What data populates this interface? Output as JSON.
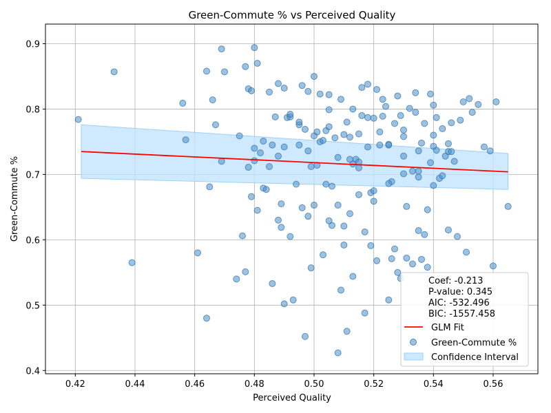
{
  "chart_data": {
    "type": "scatter",
    "title": "Green-Commute % vs Perceived Quality",
    "xlabel": "Perceived Quality",
    "ylabel": "Green-Commute %",
    "xlim": [
      0.41,
      0.575
    ],
    "ylim": [
      0.395,
      0.93
    ],
    "xticks": [
      "0.42",
      "0.44",
      "0.46",
      "0.48",
      "0.50",
      "0.52",
      "0.54",
      "0.56"
    ],
    "yticks": [
      "0.4",
      "0.5",
      "0.6",
      "0.7",
      "0.8",
      "0.9"
    ],
    "grid": true,
    "legend_position": "lower-right",
    "stats": [
      "Coef: -0.213",
      "P-value: 0.345",
      "AIC: -532.496",
      "BIC: -1557.458"
    ],
    "legend": [
      "GLM Fit",
      "Green-Commute %",
      "Confidence Interval"
    ],
    "colors": {
      "points": "#4a90c8",
      "fit": "#ff0000",
      "ci": "#bfe3ff"
    },
    "fit": {
      "x": [
        0.422,
        0.565
      ],
      "y": [
        0.735,
        0.704
      ]
    },
    "ci": {
      "x": [
        0.422,
        0.565
      ],
      "upper": [
        0.776,
        0.732
      ],
      "lower": [
        0.694,
        0.677
      ]
    },
    "series": [
      {
        "x": [
          0.421,
          0.433,
          0.439,
          0.456,
          0.457,
          0.461,
          0.464,
          0.464,
          0.465,
          0.466,
          0.467,
          0.469,
          0.469,
          0.47,
          0.474,
          0.475,
          0.476,
          0.477,
          0.477,
          0.478,
          0.478,
          0.479,
          0.479,
          0.48,
          0.48,
          0.481,
          0.481,
          0.482,
          0.483,
          0.483,
          0.484,
          0.485,
          0.486,
          0.486,
          0.487,
          0.488,
          0.488,
          0.489,
          0.489,
          0.49,
          0.49,
          0.491,
          0.492,
          0.492,
          0.493,
          0.494,
          0.495,
          0.495,
          0.496,
          0.496,
          0.497,
          0.497,
          0.498,
          0.498,
          0.499,
          0.499,
          0.5,
          0.5,
          0.501,
          0.501,
          0.502,
          0.502,
          0.503,
          0.504,
          0.504,
          0.505,
          0.505,
          0.506,
          0.506,
          0.507,
          0.508,
          0.508,
          0.509,
          0.509,
          0.51,
          0.51,
          0.511,
          0.511,
          0.512,
          0.512,
          0.513,
          0.513,
          0.514,
          0.515,
          0.515,
          0.516,
          0.516,
          0.517,
          0.517,
          0.518,
          0.518,
          0.519,
          0.519,
          0.52,
          0.52,
          0.521,
          0.521,
          0.522,
          0.523,
          0.523,
          0.524,
          0.525,
          0.525,
          0.526,
          0.526,
          0.527,
          0.527,
          0.528,
          0.528,
          0.529,
          0.529,
          0.53,
          0.53,
          0.531,
          0.531,
          0.532,
          0.533,
          0.533,
          0.534,
          0.534,
          0.535,
          0.535,
          0.536,
          0.536,
          0.537,
          0.537,
          0.538,
          0.538,
          0.539,
          0.539,
          0.54,
          0.54,
          0.541,
          0.541,
          0.542,
          0.543,
          0.543,
          0.544,
          0.545,
          0.545,
          0.546,
          0.546,
          0.547,
          0.548,
          0.549,
          0.55,
          0.551,
          0.552,
          0.553,
          0.555,
          0.557,
          0.559,
          0.56,
          0.561,
          0.565,
          0.5,
          0.505,
          0.51,
          0.515,
          0.52,
          0.525,
          0.53,
          0.535,
          0.54,
          0.495,
          0.49,
          0.485,
          0.48,
          0.505,
          0.515,
          0.525,
          0.535,
          0.512,
          0.518,
          0.522,
          0.508,
          0.498,
          0.492,
          0.488,
          0.53,
          0.54,
          0.545,
          0.503,
          0.513
        ],
        "y": [
          0.784,
          0.857,
          0.565,
          0.809,
          0.753,
          0.58,
          0.858,
          0.48,
          0.681,
          0.814,
          0.776,
          0.892,
          0.72,
          0.857,
          0.54,
          0.759,
          0.606,
          0.865,
          0.551,
          0.831,
          0.711,
          0.666,
          0.828,
          0.894,
          0.74,
          0.645,
          0.87,
          0.733,
          0.751,
          0.679,
          0.677,
          0.826,
          0.745,
          0.533,
          0.788,
          0.839,
          0.63,
          0.655,
          0.619,
          0.832,
          0.502,
          0.787,
          0.605,
          0.788,
          0.508,
          0.685,
          0.745,
          0.776,
          0.836,
          0.649,
          0.769,
          0.452,
          0.827,
          0.636,
          0.712,
          0.557,
          0.653,
          0.85,
          0.765,
          0.714,
          0.823,
          0.75,
          0.577,
          0.685,
          0.767,
          0.799,
          0.822,
          0.682,
          0.622,
          0.756,
          0.653,
          0.427,
          0.523,
          0.815,
          0.621,
          0.592,
          0.46,
          0.78,
          0.757,
          0.64,
          0.716,
          0.544,
          0.723,
          0.719,
          0.669,
          0.833,
          0.79,
          0.488,
          0.612,
          0.838,
          0.787,
          0.672,
          0.591,
          0.675,
          0.659,
          0.83,
          0.568,
          0.745,
          0.815,
          0.789,
          0.804,
          0.746,
          0.508,
          0.571,
          0.689,
          0.586,
          0.778,
          0.82,
          0.55,
          0.79,
          0.541,
          0.728,
          0.768,
          0.651,
          0.572,
          0.801,
          0.705,
          0.563,
          0.795,
          0.825,
          0.736,
          0.614,
          0.57,
          0.748,
          0.608,
          0.778,
          0.558,
          0.646,
          0.718,
          0.823,
          0.806,
          0.683,
          0.787,
          0.737,
          0.694,
          0.77,
          0.698,
          0.728,
          0.735,
          0.747,
          0.779,
          0.735,
          0.72,
          0.605,
          0.783,
          0.811,
          0.581,
          0.816,
          0.795,
          0.807,
          0.742,
          0.736,
          0.56,
          0.811,
          0.651,
          0.759,
          0.629,
          0.761,
          0.71,
          0.786,
          0.745,
          0.758,
          0.696,
          0.76,
          0.78,
          0.742,
          0.712,
          0.721,
          0.773,
          0.762,
          0.686,
          0.705,
          0.723,
          0.742,
          0.765,
          0.726,
          0.736,
          0.792,
          0.728,
          0.701,
          0.743,
          0.615,
          0.752,
          0.8
        ],
        "marker": "circle"
      }
    ]
  }
}
